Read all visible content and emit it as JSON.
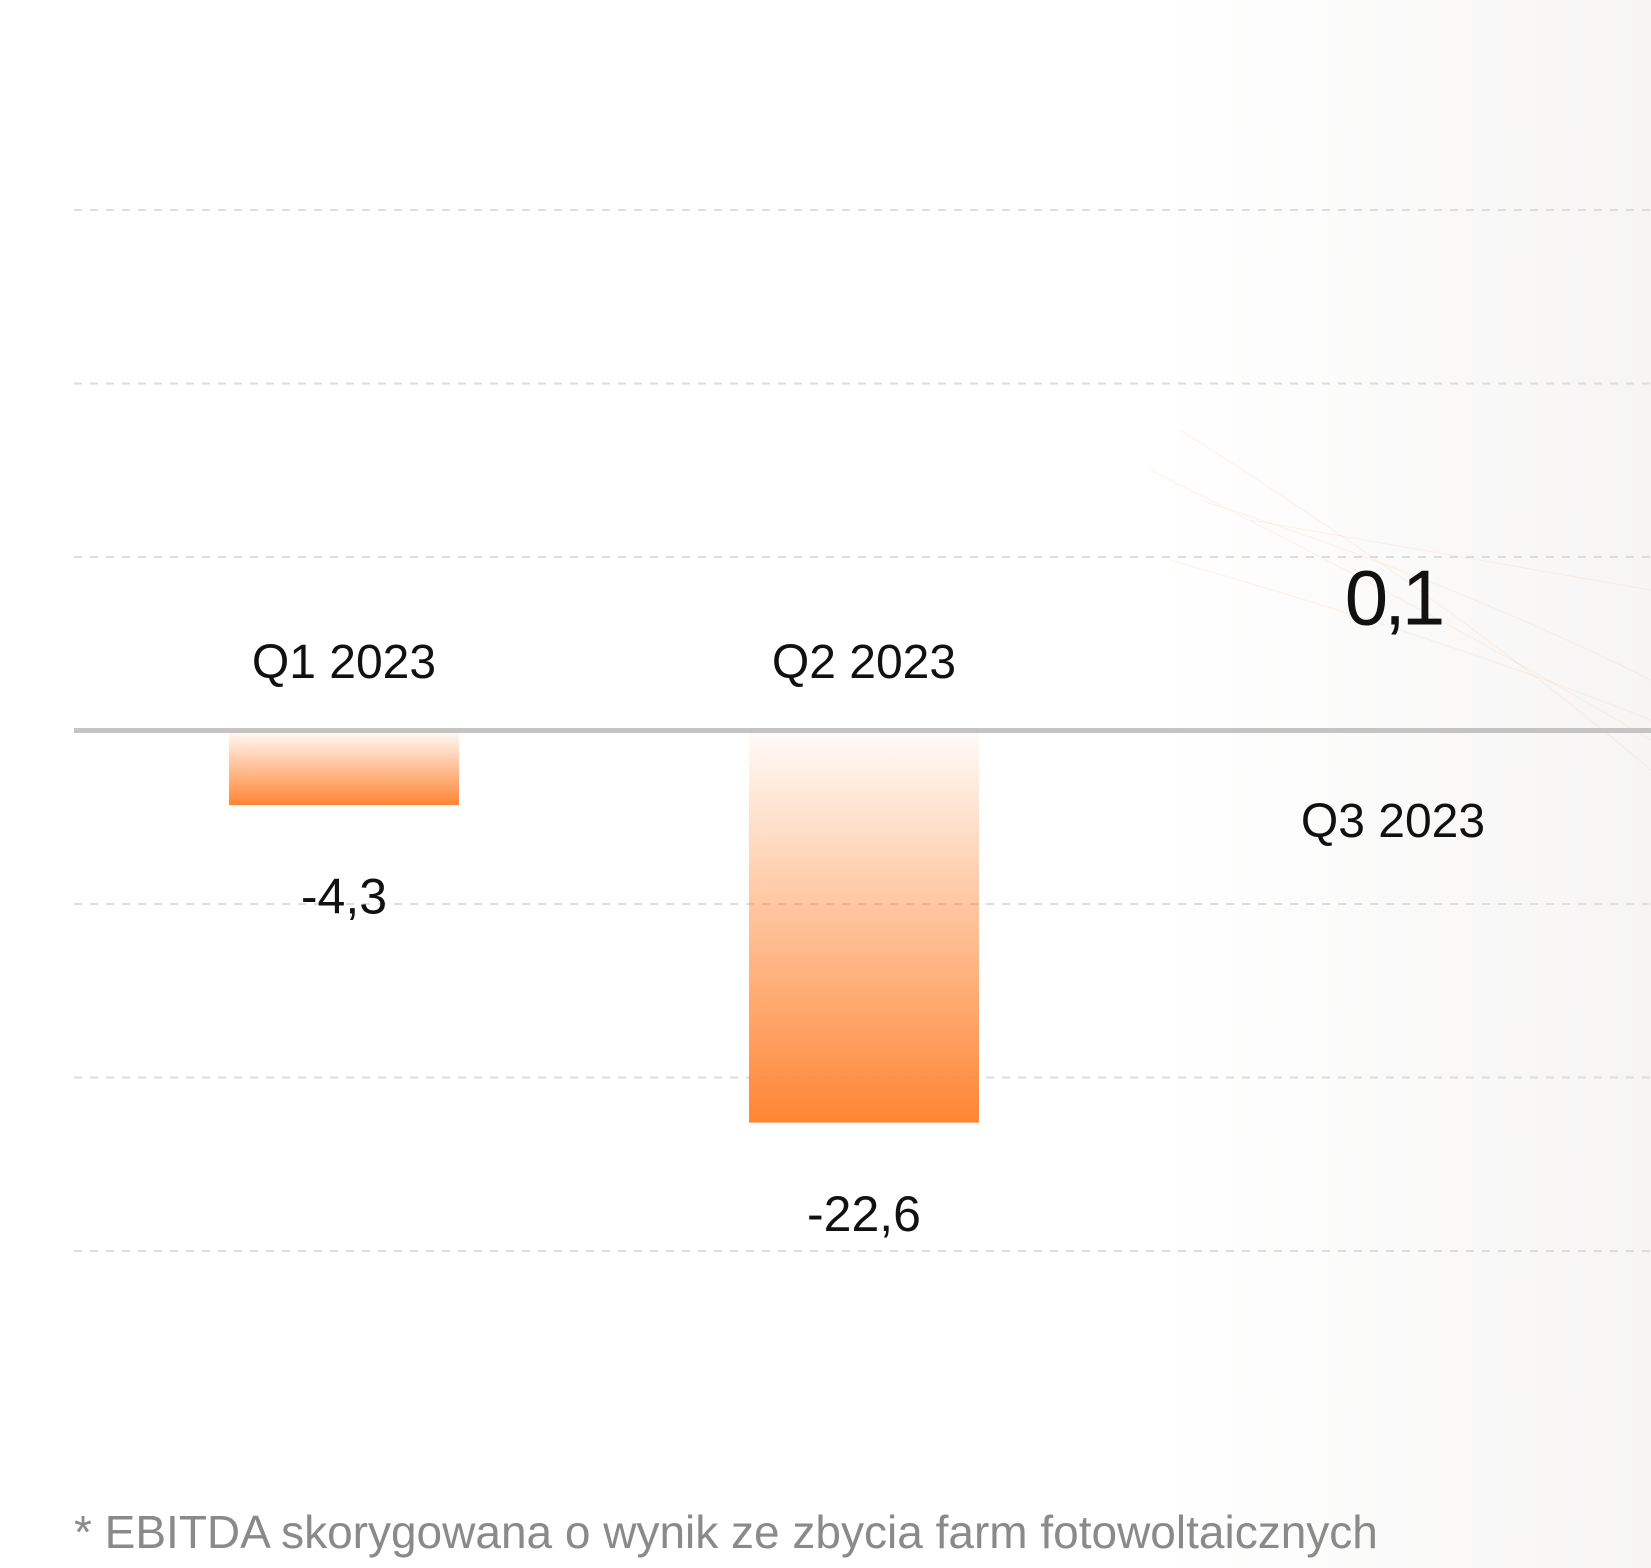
{
  "chart_data": {
    "type": "bar",
    "categories": [
      "Q1 2023",
      "Q2 2023",
      "Q3 2023"
    ],
    "values": [
      -4.3,
      -22.6,
      0.1
    ],
    "value_labels": [
      "-4,3",
      "-22,6",
      "0,1"
    ],
    "color": "#ff8534",
    "ylim": [
      -30,
      30
    ],
    "yticks": [
      -30,
      -20,
      -10,
      0,
      10,
      20,
      30
    ],
    "grid": true,
    "footnote": "* EBITDA skorygowana o wynik ze zbycia farm fotowoltaicznych"
  }
}
